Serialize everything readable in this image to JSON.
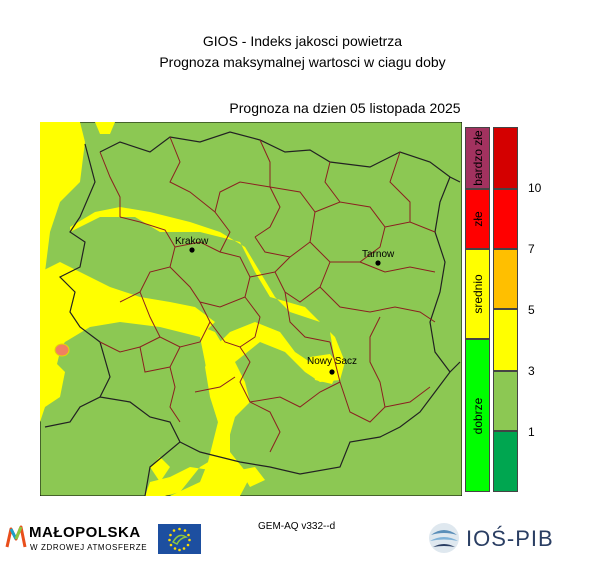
{
  "header": {
    "title_line1": "GIOS - Indeks jakosci powietrza",
    "title_line2": "Prognoza maksymalnej wartosci w ciagu doby",
    "forecast_date": "Prognoza na dzien  05 listopada 2025"
  },
  "cities": [
    {
      "name": "Krakow"
    },
    {
      "name": "Tarnow"
    },
    {
      "name": "Nowy Sacz"
    }
  ],
  "legend": {
    "categories": [
      {
        "label": "bardzo złe",
        "color": "#a2325f"
      },
      {
        "label": "złe",
        "color": "#ff0000"
      },
      {
        "label": "srednio",
        "color": "#ffff00"
      },
      {
        "label": "dobrze",
        "color": "#00ff00"
      }
    ],
    "scale_colors": [
      "#d40000",
      "#ff0000",
      "#ff2000",
      "#ffbf00",
      "#ffff00",
      "#8cc853",
      "#00a650"
    ],
    "scale_ticks": [
      "10",
      "7",
      "5",
      "3",
      "1"
    ]
  },
  "map_colors": {
    "good": "#8cc853",
    "moderate": "#ffff00",
    "moderate_dark": "#e6d800",
    "bad": "#f08060",
    "border_admin": "#8b2020",
    "border_region": "#222222"
  },
  "footer": {
    "model": "GEM-AQ v332--d",
    "logo_left_title": "MAŁOPOLSKA",
    "logo_left_subtitle": "W ZDROWEJ ATMOSFERZE",
    "logo_right": "IOŚ-PIB"
  }
}
